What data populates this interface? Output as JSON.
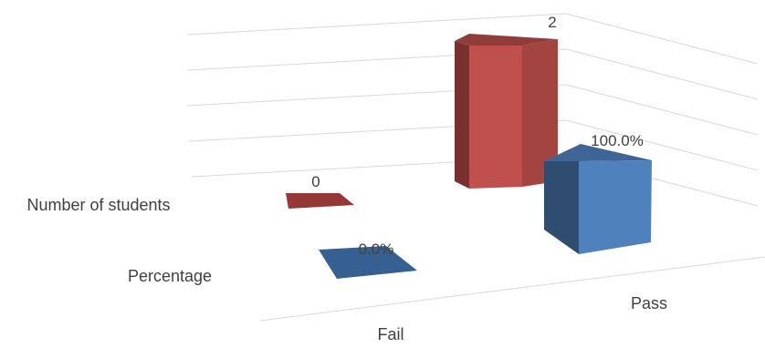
{
  "chart_data": {
    "type": "bar",
    "three_d": true,
    "categories": [
      "Fail",
      "Pass"
    ],
    "series": [
      {
        "name": "Number of students",
        "values": [
          0,
          2
        ],
        "labels": [
          "0",
          "2"
        ],
        "color": "#c0504d"
      },
      {
        "name": "Percentage",
        "values": [
          0.0,
          100.0
        ],
        "labels": [
          "0.0%",
          "100.0%"
        ],
        "color": "#4f81bd"
      }
    ],
    "grid": true,
    "legend": "none"
  }
}
